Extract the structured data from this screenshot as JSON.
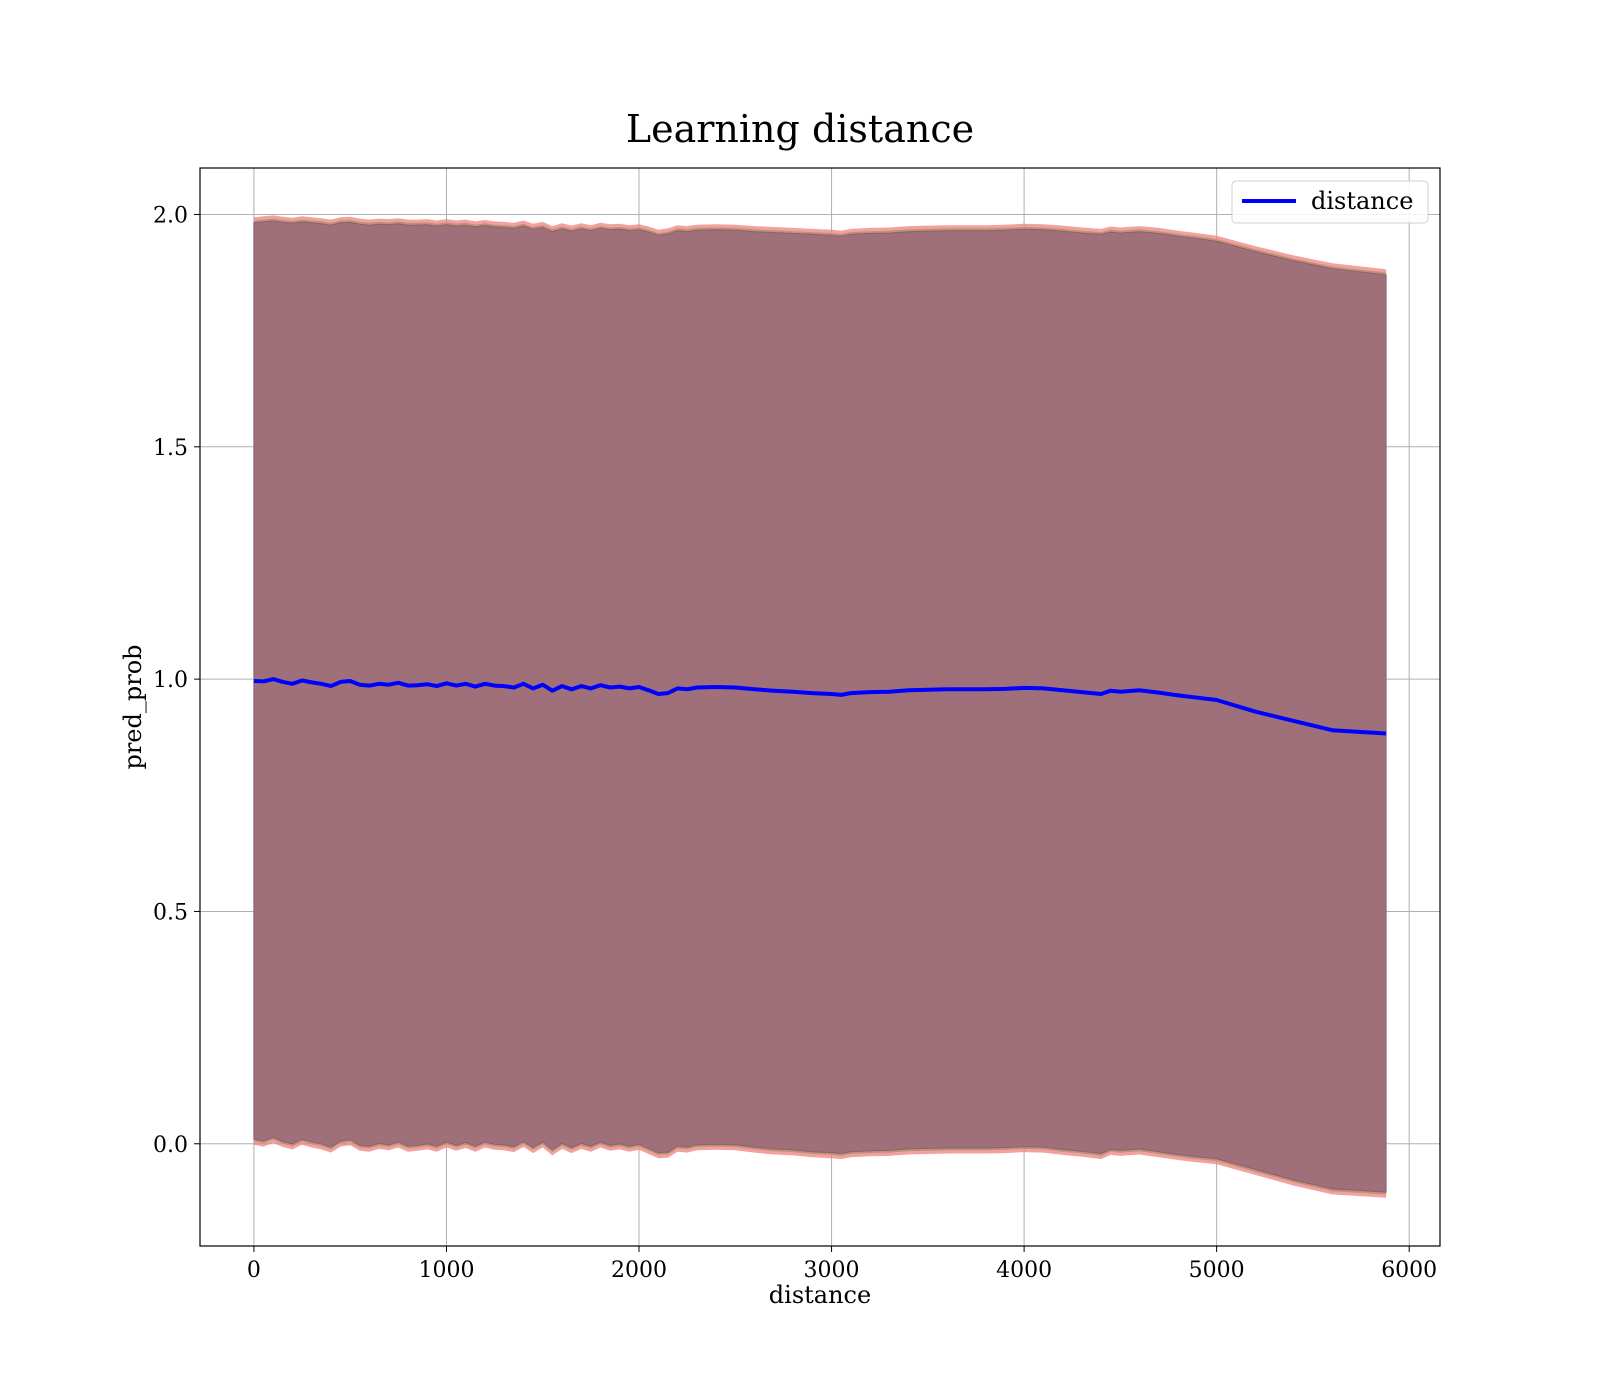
{
  "chart_data": {
    "type": "line",
    "title": "Learning distance",
    "xlabel": "distance",
    "ylabel": "pred_prob",
    "xlim": [
      -280,
      6160
    ],
    "ylim": [
      -0.22,
      2.1
    ],
    "xticks": [
      0,
      1000,
      2000,
      3000,
      4000,
      5000,
      6000
    ],
    "xtick_labels": [
      "0",
      "1000",
      "2000",
      "3000",
      "4000",
      "5000",
      "6000"
    ],
    "yticks": [
      0.0,
      0.5,
      1.0,
      1.5,
      2.0
    ],
    "ytick_labels": [
      "0.0",
      "0.5",
      "1.0",
      "1.5",
      "2.0"
    ],
    "grid": true,
    "legend": {
      "position": "top-right",
      "entries": [
        "distance"
      ]
    },
    "colors": {
      "line": "#0000ff",
      "band_fill": "#a0707a",
      "band_edge": "#f08080"
    },
    "series": [
      {
        "name": "distance",
        "x": [
          0,
          50,
          100,
          150,
          200,
          250,
          300,
          350,
          400,
          450,
          500,
          550,
          600,
          650,
          700,
          750,
          800,
          850,
          900,
          950,
          1000,
          1050,
          1100,
          1150,
          1200,
          1250,
          1300,
          1350,
          1400,
          1450,
          1500,
          1550,
          1600,
          1650,
          1700,
          1750,
          1800,
          1850,
          1900,
          1950,
          2000,
          2050,
          2100,
          2150,
          2200,
          2250,
          2300,
          2400,
          2500,
          2600,
          2700,
          2800,
          2900,
          3000,
          3050,
          3100,
          3200,
          3300,
          3400,
          3500,
          3600,
          3700,
          3800,
          3900,
          4000,
          4100,
          4200,
          4300,
          4400,
          4450,
          4500,
          4600,
          4700,
          4800,
          4900,
          5000,
          5200,
          5400,
          5600,
          5880
        ],
        "y": [
          0.996,
          0.995,
          1.0,
          0.994,
          0.99,
          0.997,
          0.993,
          0.99,
          0.985,
          0.994,
          0.996,
          0.988,
          0.986,
          0.99,
          0.988,
          0.992,
          0.986,
          0.987,
          0.989,
          0.985,
          0.991,
          0.986,
          0.99,
          0.984,
          0.99,
          0.986,
          0.985,
          0.982,
          0.99,
          0.98,
          0.988,
          0.975,
          0.985,
          0.978,
          0.985,
          0.98,
          0.987,
          0.982,
          0.984,
          0.98,
          0.983,
          0.976,
          0.968,
          0.97,
          0.98,
          0.978,
          0.982,
          0.983,
          0.982,
          0.978,
          0.975,
          0.973,
          0.97,
          0.968,
          0.966,
          0.97,
          0.972,
          0.973,
          0.976,
          0.977,
          0.978,
          0.978,
          0.978,
          0.979,
          0.981,
          0.98,
          0.976,
          0.972,
          0.968,
          0.975,
          0.973,
          0.976,
          0.971,
          0.965,
          0.96,
          0.955,
          0.93,
          0.91,
          0.89,
          0.883
        ],
        "band": {
          "upper": [
            1.982,
            1.984,
            1.986,
            1.983,
            1.981,
            1.984,
            1.982,
            1.98,
            1.977,
            1.982,
            1.983,
            1.979,
            1.977,
            1.979,
            1.978,
            1.98,
            1.977,
            1.977,
            1.978,
            1.975,
            1.978,
            1.975,
            1.977,
            1.973,
            1.976,
            1.973,
            1.972,
            1.97,
            1.975,
            1.968,
            1.972,
            1.963,
            1.969,
            1.964,
            1.969,
            1.965,
            1.97,
            1.967,
            1.968,
            1.965,
            1.967,
            1.962,
            1.955,
            1.958,
            1.965,
            1.963,
            1.966,
            1.967,
            1.966,
            1.963,
            1.961,
            1.959,
            1.957,
            1.955,
            1.953,
            1.957,
            1.959,
            1.96,
            1.963,
            1.964,
            1.965,
            1.965,
            1.965,
            1.966,
            1.968,
            1.967,
            1.964,
            1.96,
            1.957,
            1.962,
            1.96,
            1.963,
            1.959,
            1.953,
            1.948,
            1.942,
            1.92,
            1.9,
            1.883,
            1.87
          ],
          "lower": [
            0.01,
            0.006,
            0.014,
            0.005,
            0.0,
            0.01,
            0.004,
            0.0,
            -0.007,
            0.006,
            0.009,
            -0.003,
            -0.005,
            0.001,
            -0.002,
            0.004,
            -0.005,
            -0.003,
            0.0,
            -0.005,
            0.004,
            -0.003,
            0.003,
            -0.005,
            0.004,
            -0.001,
            -0.002,
            -0.006,
            0.005,
            -0.008,
            0.004,
            -0.013,
            0.001,
            -0.008,
            0.001,
            -0.005,
            0.004,
            -0.003,
            0.0,
            -0.005,
            -0.001,
            -0.01,
            -0.019,
            -0.018,
            -0.005,
            -0.007,
            -0.002,
            -0.001,
            -0.002,
            -0.007,
            -0.011,
            -0.013,
            -0.017,
            -0.019,
            -0.021,
            -0.017,
            -0.015,
            -0.014,
            -0.011,
            -0.01,
            -0.009,
            -0.009,
            -0.009,
            -0.008,
            -0.006,
            -0.007,
            -0.012,
            -0.016,
            -0.021,
            -0.012,
            -0.014,
            -0.011,
            -0.017,
            -0.023,
            -0.028,
            -0.032,
            -0.055,
            -0.078,
            -0.097,
            -0.104
          ]
        }
      }
    ]
  }
}
